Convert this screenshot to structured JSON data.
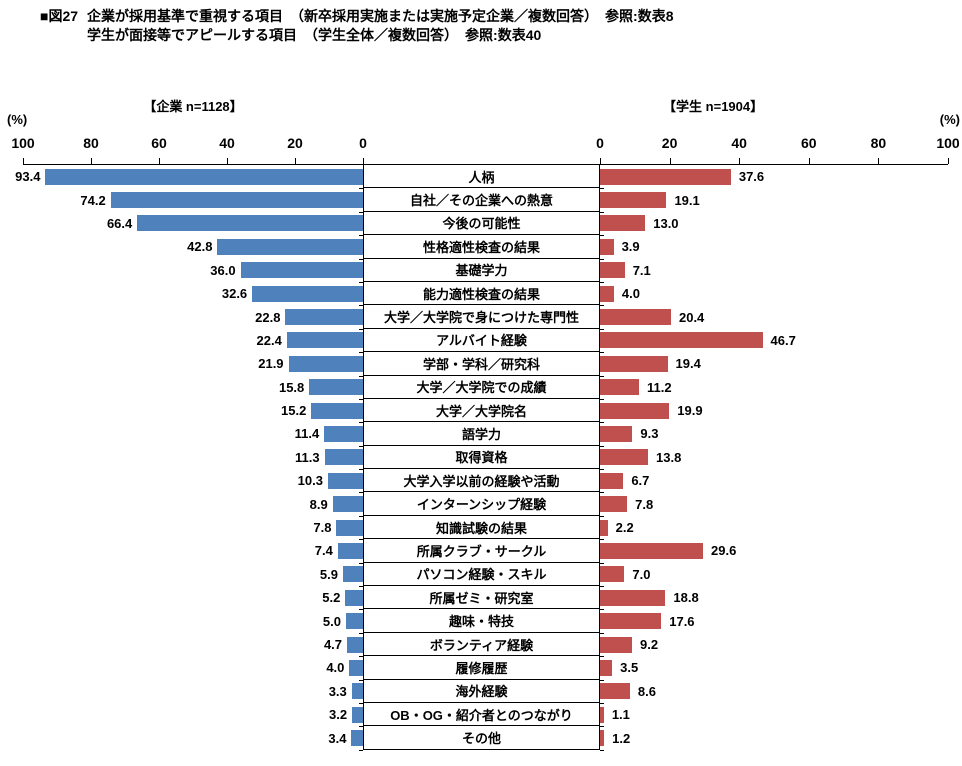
{
  "title": {
    "prefix": "■図27",
    "line1": "企業が採用基準で重視する項目　（新卒採用実施または実施予定企業／複数回答）　参照:数表8",
    "line2": "学生が面接等でアピールする項目　（学生全体／複数回答）　参照:数表40"
  },
  "chart_data": {
    "type": "bar",
    "orientation": "horizontal-diverging",
    "percent_label": "(%)",
    "xlim": [
      0,
      100
    ],
    "left_axis": {
      "header": "【企業 n=1128】",
      "ticks": [
        "100",
        "80",
        "60",
        "40",
        "20",
        "0"
      ],
      "direction": "right-to-left"
    },
    "right_axis": {
      "header": "【学生 n=1904】",
      "ticks": [
        "0",
        "20",
        "40",
        "60",
        "80",
        "100"
      ],
      "direction": "left-to-right"
    },
    "categories": [
      "人柄",
      "自社／その企業への熱意",
      "今後の可能性",
      "性格適性検査の結果",
      "基礎学力",
      "能力適性検査の結果",
      "大学／大学院で身につけた専門性",
      "アルバイト経験",
      "学部・学科／研究科",
      "大学／大学院での成績",
      "大学／大学院名",
      "語学力",
      "取得資格",
      "大学入学以前の経験や活動",
      "インターンシップ経験",
      "知識試験の結果",
      "所属クラブ・サークル",
      "パソコン経験・スキル",
      "所属ゼミ・研究室",
      "趣味・特技",
      "ボランティア経験",
      "履修履歴",
      "海外経験",
      "OB・OG・紹介者とのつながり",
      "その他"
    ],
    "series": [
      {
        "name": "企業",
        "color": "#4F81BD",
        "values": [
          "93.4",
          "74.2",
          "66.4",
          "42.8",
          "36.0",
          "32.6",
          "22.8",
          "22.4",
          "21.9",
          "15.8",
          "15.2",
          "11.4",
          "11.3",
          "10.3",
          "8.9",
          "7.8",
          "7.4",
          "5.9",
          "5.2",
          "5.0",
          "4.7",
          "4.0",
          "3.3",
          "3.2",
          "3.4"
        ]
      },
      {
        "name": "学生",
        "color": "#C0504D",
        "values": [
          "37.6",
          "19.1",
          "13.0",
          "3.9",
          "7.1",
          "4.0",
          "20.4",
          "46.7",
          "19.4",
          "11.2",
          "19.9",
          "9.3",
          "13.8",
          "6.7",
          "7.8",
          "2.2",
          "29.6",
          "7.0",
          "18.8",
          "17.6",
          "9.2",
          "3.5",
          "8.6",
          "1.1",
          "1.2"
        ]
      }
    ]
  }
}
